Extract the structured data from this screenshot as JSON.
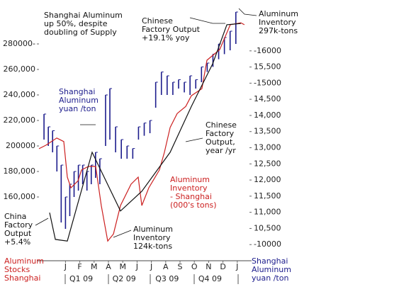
{
  "chart_data": {
    "type": "line",
    "xlim": [
      -1,
      14
    ],
    "xticks": [
      {
        "value": 1,
        "label": "J"
      },
      {
        "value": 2,
        "label": "F"
      },
      {
        "value": 3,
        "label": "M"
      },
      {
        "value": 4,
        "label": "A"
      },
      {
        "value": 5,
        "label": "M"
      },
      {
        "value": 6,
        "label": "J"
      },
      {
        "value": 7,
        "label": "J"
      },
      {
        "value": 8,
        "label": "A"
      },
      {
        "value": 9,
        "label": "S"
      },
      {
        "value": 10,
        "label": "O"
      },
      {
        "value": 11,
        "label": "N"
      },
      {
        "value": 12,
        "label": "D"
      },
      {
        "value": 13,
        "label": "J"
      }
    ],
    "quarters": [
      {
        "value": 2,
        "label": "Q1 09"
      },
      {
        "value": 5,
        "label": "Q2 09"
      },
      {
        "value": 8,
        "label": "Q3 09"
      },
      {
        "value": 11,
        "label": "Q4 09"
      }
    ],
    "ylim": [
      110000,
      310000
    ],
    "yticks": [
      {
        "value": 280000,
        "label": "280000-"
      },
      {
        "value": 260000,
        "label": "260,000"
      },
      {
        "value": 240000,
        "label": "240,000"
      },
      {
        "value": 220000,
        "label": "220,000"
      },
      {
        "value": 200000,
        "label": "200000"
      },
      {
        "value": 180000,
        "label": "180,000"
      },
      {
        "value": 160000,
        "label": "160,000"
      }
    ],
    "y2lim": [
      9500,
      17400
    ],
    "y2ticks": [
      {
        "value": 16000,
        "label": "-16000"
      },
      {
        "value": 15500,
        "label": "15,500"
      },
      {
        "value": 15000,
        "label": "-15000"
      },
      {
        "value": 14500,
        "label": "14,500"
      },
      {
        "value": 14000,
        "label": "14,000"
      },
      {
        "value": 13500,
        "label": "13,500"
      },
      {
        "value": 13000,
        "label": "13,000"
      },
      {
        "value": 12500,
        "label": "12,500"
      },
      {
        "value": 12000,
        "label": "12,000"
      },
      {
        "value": 11500,
        "label": "11,500"
      },
      {
        "value": 11000,
        "label": "11,000"
      },
      {
        "value": 10500,
        "label": "10,500"
      },
      {
        "value": 10000,
        "label": "-10000"
      }
    ],
    "series": [
      {
        "type": "hilo",
        "color": "#1c1c8c",
        "x": [
          -0.5,
          -0.2,
          0.1,
          0.4,
          0.7,
          1.0,
          1.3,
          1.6,
          1.9,
          2.2,
          2.5,
          2.8,
          3.1,
          3.4,
          3.8,
          4.1,
          4.5,
          4.9,
          5.3,
          5.7,
          6.1,
          6.5,
          6.9,
          7.3,
          7.7,
          8.1,
          8.5,
          8.9,
          9.3,
          9.7,
          10.1,
          10.5,
          10.9,
          11.3,
          11.7,
          12.1,
          12.5,
          12.9
        ],
        "low": [
          205000,
          200000,
          195000,
          180000,
          140000,
          135000,
          145000,
          160000,
          165000,
          170000,
          165000,
          170000,
          175000,
          170000,
          200000,
          205000,
          195000,
          190000,
          190000,
          190000,
          205000,
          208000,
          210000,
          230000,
          240000,
          240000,
          240000,
          245000,
          242000,
          240000,
          245000,
          250000,
          258000,
          262000,
          268000,
          272000,
          275000,
          280000
        ],
        "high": [
          225000,
          215000,
          212000,
          200000,
          185000,
          160000,
          170000,
          180000,
          185000,
          185000,
          180000,
          185000,
          195000,
          190000,
          240000,
          245000,
          215000,
          205000,
          200000,
          198000,
          215000,
          218000,
          220000,
          250000,
          258000,
          255000,
          250000,
          252000,
          250000,
          255000,
          252000,
          262000,
          265000,
          272000,
          280000,
          285000,
          290000,
          305000
        ]
      },
      {
        "type": "line",
        "axis": "y2",
        "color": "#cc2020",
        "x": [
          -0.85,
          -0.36,
          0.39,
          0.88,
          1.13,
          1.38,
          1.88,
          2.12,
          2.61,
          3.11,
          3.5,
          3.95,
          4.35,
          4.84,
          5.58,
          6.08,
          6.33,
          6.82,
          7.56,
          7.91,
          8.31,
          8.8,
          9.4,
          9.79,
          10.53,
          10.88,
          11.77,
          12.51,
          13.25,
          13.5
        ],
        "values": [
          12970,
          13080,
          13300,
          13190,
          12090,
          11760,
          11980,
          12310,
          12420,
          12420,
          11210,
          10110,
          10330,
          11210,
          11870,
          12090,
          11210,
          11760,
          12310,
          12860,
          13630,
          14060,
          14280,
          14610,
          14830,
          15710,
          16040,
          16810,
          16870,
          16810
        ]
      },
      {
        "type": "line",
        "axis": "y2",
        "color": "#111111",
        "x": [
          -0.11,
          0.29,
          1.13,
          2.86,
          4.84,
          6.33,
          8.31,
          9.79,
          11.28,
          12.27,
          13.25
        ],
        "values": [
          10990,
          10160,
          10110,
          12860,
          11040,
          11650,
          12860,
          14280,
          15600,
          16810,
          16850
        ]
      }
    ],
    "annotations": [
      {
        "lines": [
          "Shanghai Aluminum",
          "up 50%, despite",
          "doubling of Supply"
        ],
        "color": "#111111"
      },
      {
        "lines": [
          "Chinese",
          "Factory Output",
          "+19.1% yoy"
        ],
        "color": "#111111"
      },
      {
        "lines": [
          "Aluminum",
          "Inventory",
          "297k-tons"
        ],
        "color": "#111111"
      },
      {
        "lines": [
          "Shanghai",
          "Aluminum",
          "yuan /ton"
        ],
        "color": "#1c1c8c"
      },
      {
        "lines": [
          "Chinese",
          "Factory",
          "Output,",
          "year /yr"
        ],
        "color": "#111111"
      },
      {
        "lines": [
          "Aluminum",
          "Inventory",
          "- Shanghai",
          "(000's tons)"
        ],
        "color": "#cc2020"
      },
      {
        "lines": [
          "Aluminum",
          "Inventory",
          "124k-tons"
        ],
        "color": "#111111"
      },
      {
        "lines": [
          "China",
          "Factory",
          "Output",
          "+5.4%"
        ],
        "color": "#111111"
      },
      {
        "lines": [
          "Aluminum",
          "Stocks",
          "Shanghai"
        ],
        "color": "#cc2020"
      },
      {
        "lines": [
          "Shanghai",
          "Aluminum",
          "yuan /ton"
        ],
        "color": "#1c1c8c"
      }
    ]
  }
}
